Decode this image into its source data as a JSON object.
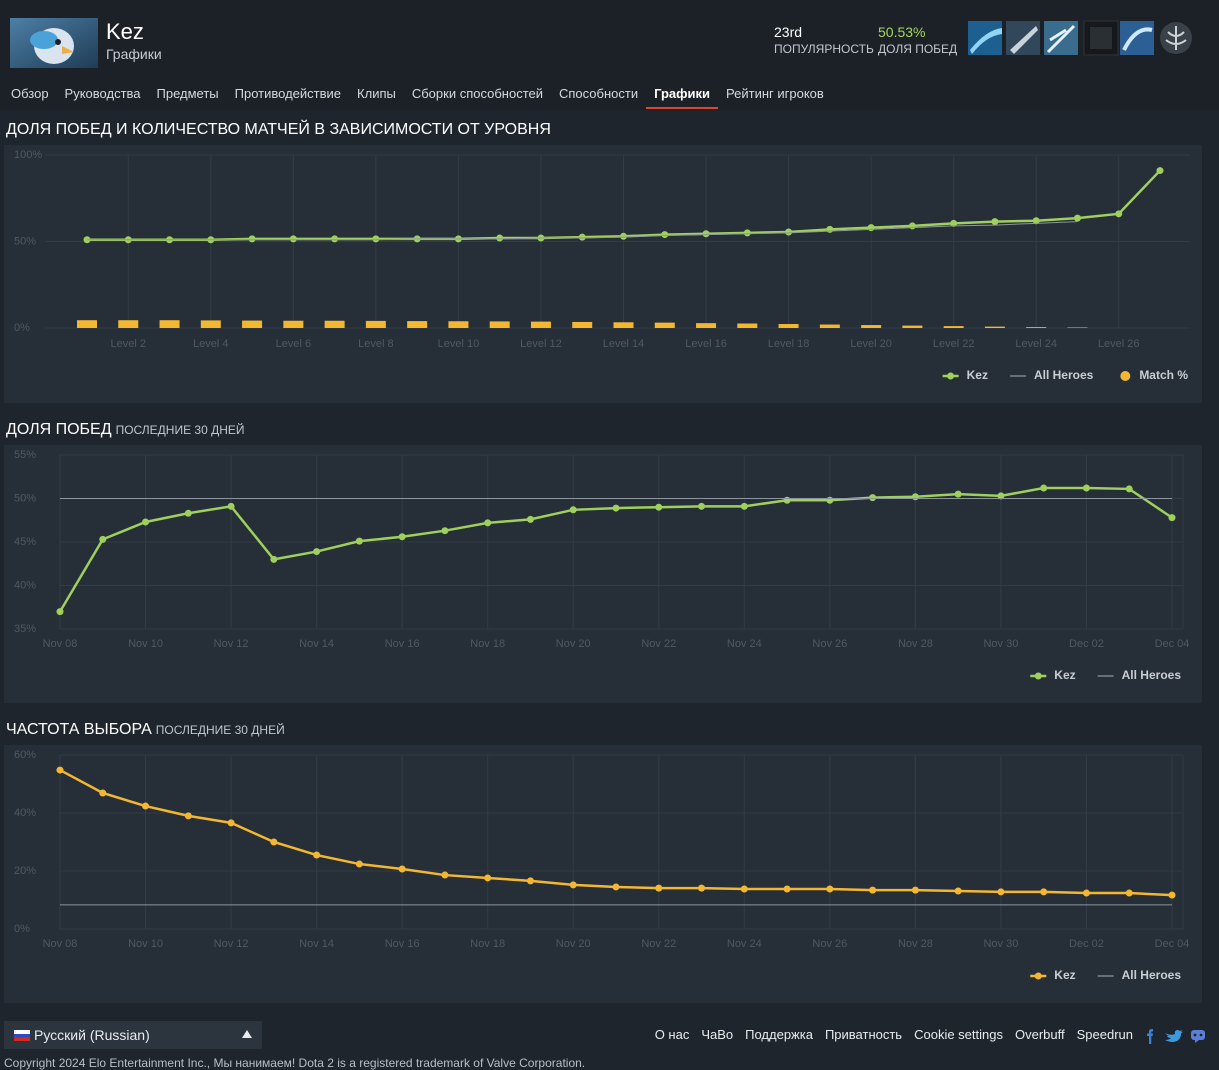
{
  "header": {
    "hero": "Kez",
    "subtitle": "Графики",
    "stats": [
      {
        "value": "23rd",
        "label": "ПОПУЛЯРНОСТЬ"
      },
      {
        "value": "50.53%",
        "label": "ДОЛЯ ПОБЕД"
      }
    ]
  },
  "nav": {
    "items": [
      "Обзор",
      "Руководства",
      "Предметы",
      "Противодействие",
      "Клипы",
      "Сборки способностей",
      "Способности",
      "Графики",
      "Рейтинг игроков"
    ],
    "active": 7
  },
  "chart_data": [
    {
      "type": "line",
      "title": "ДОЛЯ ПОБЕД И КОЛИЧЕСТВО МАТЧЕЙ В ЗАВИСИМОСТИ ОТ УРОВНЯ",
      "categories": [
        null,
        "Level 2",
        null,
        "Level 4",
        null,
        "Level 6",
        null,
        "Level 8",
        null,
        "Level 10",
        null,
        "Level 12",
        null,
        "Level 14",
        null,
        "Level 16",
        null,
        "Level 18",
        null,
        "Level 20",
        null,
        "Level 22",
        null,
        "Level 24",
        null,
        "Level 26",
        null
      ],
      "series": [
        {
          "name": "Kez",
          "color": "#9fcf5c",
          "markers": true,
          "values": [
            51,
            51,
            51,
            51,
            51.5,
            51.5,
            51.5,
            51.5,
            51.5,
            51.5,
            52,
            52,
            52.5,
            53,
            54,
            54.5,
            55,
            55.5,
            57,
            58,
            59,
            60.5,
            61.5,
            62,
            63.5,
            66,
            91
          ]
        },
        {
          "name": "All Heroes",
          "color": "#8d959e",
          "markers": false,
          "values": [
            51,
            51,
            51,
            51,
            51,
            51,
            51,
            51,
            51.5,
            51.5,
            51.5,
            52,
            52,
            52.5,
            53.5,
            54,
            54.5,
            55,
            56,
            57,
            58,
            59,
            59.5,
            60.5,
            61.5,
            null,
            null
          ]
        },
        {
          "name": "Match %",
          "color": "#f4b731",
          "type": "bar",
          "values": [
            4.5,
            4.5,
            4.5,
            4.4,
            4.3,
            4.2,
            4.2,
            4.1,
            4.0,
            3.9,
            3.8,
            3.7,
            3.5,
            3.3,
            3.1,
            2.8,
            2.6,
            2.3,
            2.0,
            1.7,
            1.4,
            1.1,
            0.8,
            0.5,
            0.3,
            0,
            0
          ]
        }
      ],
      "ylim": [
        0,
        100
      ],
      "yticks": [
        {
          "value": 0,
          "label": "0%"
        },
        {
          "value": 50,
          "label": "50%"
        },
        {
          "value": 100,
          "label": "100%"
        }
      ],
      "grid": true,
      "legend": "bottom-right"
    },
    {
      "type": "line",
      "title": "ДОЛЯ ПОБЕД",
      "subtitle": "ПОСЛЕДНИЕ 30 ДНЕЙ",
      "categories": [
        "Nov 08",
        null,
        "Nov 10",
        null,
        "Nov 12",
        null,
        "Nov 14",
        null,
        "Nov 16",
        null,
        "Nov 18",
        null,
        "Nov 20",
        null,
        "Nov 22",
        null,
        "Nov 24",
        null,
        "Nov 26",
        null,
        "Nov 28",
        null,
        "Nov 30",
        null,
        "Dec 02",
        null,
        "Dec 04"
      ],
      "series": [
        {
          "name": "Kez",
          "color": "#9fcf5c",
          "markers": true,
          "values": [
            37.0,
            45.3,
            47.3,
            48.3,
            49.1,
            43.0,
            43.9,
            45.1,
            45.6,
            46.3,
            47.2,
            47.6,
            48.7,
            48.9,
            49.0,
            49.1,
            49.1,
            49.8,
            49.8,
            50.1,
            50.2,
            50.5,
            50.3,
            51.2,
            51.2,
            51.1,
            47.8
          ]
        },
        {
          "name": "All Heroes",
          "color": "#8d959e",
          "markers": false,
          "values": [
            50,
            50,
            50,
            50,
            50,
            50,
            50,
            50,
            50,
            50,
            50,
            50,
            50,
            50,
            50,
            50,
            50,
            50,
            50,
            50,
            50,
            50,
            50,
            50,
            50,
            50,
            50
          ]
        }
      ],
      "ylim": [
        35,
        55
      ],
      "yticks": [
        {
          "value": 35,
          "label": "35%"
        },
        {
          "value": 40,
          "label": "40%"
        },
        {
          "value": 45,
          "label": "45%"
        },
        {
          "value": 50,
          "label": "50%"
        },
        {
          "value": 55,
          "label": "55%"
        }
      ],
      "grid": true,
      "legend": "bottom-right"
    },
    {
      "type": "line",
      "title": "ЧАСТОТА ВЫБОРА",
      "subtitle": "ПОСЛЕДНИЕ 30 ДНЕЙ",
      "categories": [
        "Nov 08",
        null,
        "Nov 10",
        null,
        "Nov 12",
        null,
        "Nov 14",
        null,
        "Nov 16",
        null,
        "Nov 18",
        null,
        "Nov 20",
        null,
        "Nov 22",
        null,
        "Nov 24",
        null,
        "Nov 26",
        null,
        "Nov 28",
        null,
        "Nov 30",
        null,
        "Dec 02",
        null,
        "Dec 04"
      ],
      "series": [
        {
          "name": "Kez",
          "color": "#f4b731",
          "markers": true,
          "values": [
            54.8,
            46.9,
            42.4,
            39.0,
            36.6,
            30.0,
            25.5,
            22.4,
            20.7,
            18.6,
            17.6,
            16.6,
            15.2,
            14.5,
            14.1,
            14.1,
            13.8,
            13.8,
            13.8,
            13.4,
            13.4,
            13.1,
            12.8,
            12.8,
            12.4,
            12.4,
            11.7
          ]
        },
        {
          "name": "All Heroes",
          "color": "#8d959e",
          "markers": false,
          "values": [
            8.3,
            8.3,
            8.3,
            8.3,
            8.3,
            8.3,
            8.3,
            8.3,
            8.3,
            8.3,
            8.3,
            8.3,
            8.3,
            8.3,
            8.3,
            8.3,
            8.3,
            8.3,
            8.3,
            8.3,
            8.3,
            8.3,
            8.3,
            8.3,
            8.3,
            8.3,
            8.3
          ]
        }
      ],
      "ylim": [
        0,
        60
      ],
      "yticks": [
        {
          "value": 0,
          "label": "0%"
        },
        {
          "value": 20,
          "label": "20%"
        },
        {
          "value": 40,
          "label": "40%"
        },
        {
          "value": 60,
          "label": "60%"
        }
      ],
      "grid": true,
      "legend": "bottom-right"
    }
  ],
  "footer": {
    "language": "Русский (Russian)",
    "links": [
      "О нас",
      "ЧаВо",
      "Поддержка",
      "Приватность",
      "Cookie settings",
      "Overbuff",
      "Speedrun"
    ],
    "copyright": "Copyright 2024 Elo Entertainment Inc., Мы нанимаем! Dota 2 is a registered trademark of Valve Corporation."
  }
}
